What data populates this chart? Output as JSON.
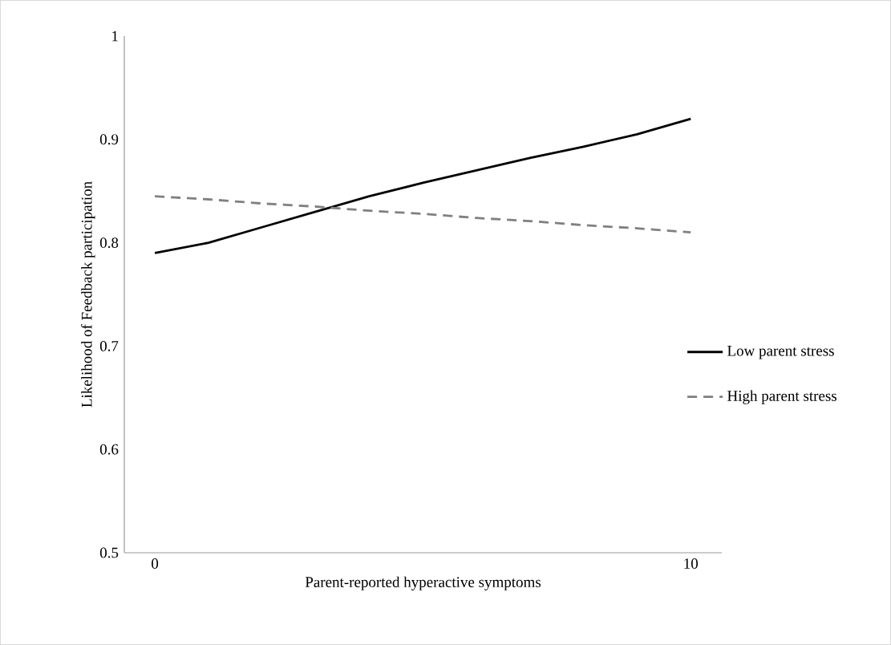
{
  "chart_data": {
    "type": "line",
    "xlabel": "Parent-reported hyperactive symptoms",
    "ylabel": "Likelihood of Feedback participation",
    "x": [
      0,
      1,
      2,
      3,
      4,
      5,
      6,
      7,
      8,
      9,
      10
    ],
    "series": [
      {
        "name": "Low parent stress",
        "color": "#000000",
        "line_style": "solid",
        "values": [
          0.79,
          0.8,
          0.815,
          0.83,
          0.845,
          0.858,
          0.87,
          0.882,
          0.893,
          0.905,
          0.92
        ]
      },
      {
        "name": "High parent stress",
        "color": "#808080",
        "line_style": "dashed",
        "values": [
          0.845,
          0.842,
          0.838,
          0.835,
          0.831,
          0.828,
          0.824,
          0.821,
          0.817,
          0.814,
          0.81
        ]
      }
    ],
    "xlim": [
      -0.57,
      10.58
    ],
    "ylim": [
      0.5,
      1
    ],
    "xticks": [
      0,
      10
    ],
    "yticks": [
      0.5,
      0.6,
      0.7,
      0.8,
      0.9,
      1
    ],
    "grid": false,
    "legend": "right",
    "marker": "none"
  }
}
